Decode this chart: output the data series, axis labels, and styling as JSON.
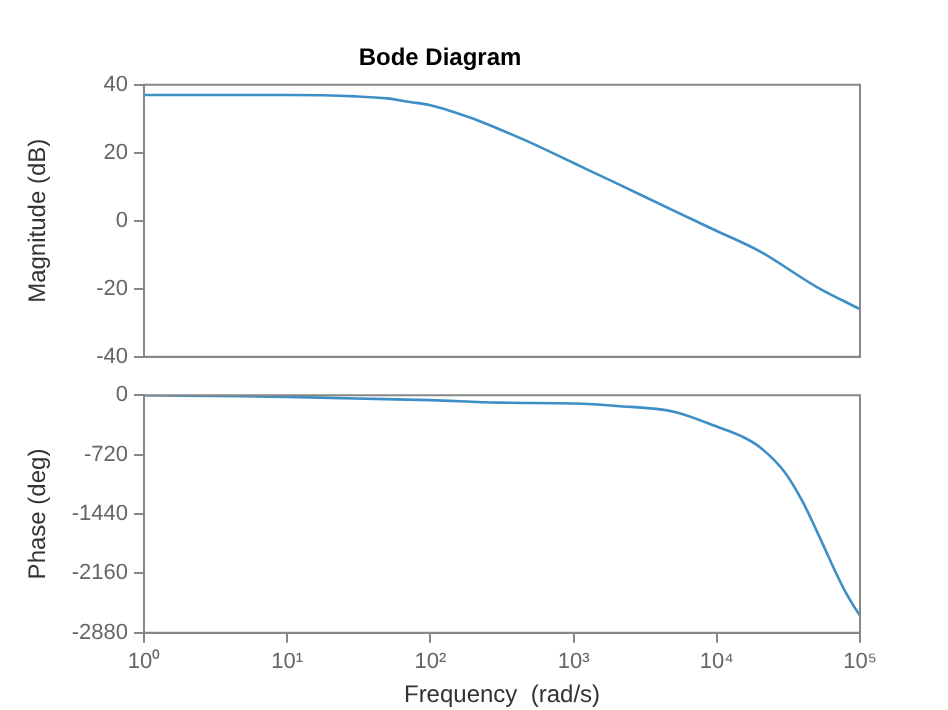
{
  "chart_data": [
    {
      "type": "line",
      "title": "Bode Diagram",
      "ylabel": "Magnitude (dB)",
      "log": "x",
      "grid": false,
      "marker": "none",
      "line_style": "solid",
      "legend": false,
      "tick_labels": "y",
      "x": [
        1,
        3,
        10,
        30,
        50,
        70,
        100,
        200,
        300,
        500,
        1000,
        2000,
        5000,
        10000,
        20000,
        50000,
        100000
      ],
      "series": [
        {
          "color": "#3d8fc6",
          "values": [
            37,
            37,
            37,
            36.6,
            36,
            35,
            34,
            30,
            27,
            23,
            17,
            11,
            3,
            -3,
            -9,
            -19.5,
            -26
          ]
        }
      ],
      "xlim": [
        1,
        100000
      ],
      "xticks": [
        {
          "value": 1,
          "label": null
        },
        {
          "value": 10,
          "label": null
        },
        {
          "value": 100,
          "label": null
        },
        {
          "value": 1000,
          "label": null
        },
        {
          "value": 10000,
          "label": null
        },
        {
          "value": 100000,
          "label": null
        }
      ],
      "ylim": [
        -40,
        40
      ],
      "yticks": [
        -40,
        -20,
        0,
        20,
        40
      ]
    },
    {
      "type": "line",
      "xlabel": "Frequency  (rad/s)",
      "ylabel": "Phase (deg)",
      "log": "x",
      "grid": false,
      "marker": "none",
      "line_style": "solid",
      "legend": false,
      "x": [
        1,
        3,
        10,
        30,
        100,
        300,
        1000,
        2000,
        5000,
        10000,
        15000,
        20000,
        30000,
        40000,
        50000,
        60000,
        70000,
        80000,
        90000,
        100000
      ],
      "series": [
        {
          "color": "#3d8fc6",
          "values": [
            0,
            -10,
            -20,
            -40,
            -60,
            -90,
            -100,
            -130,
            -200,
            -380,
            -500,
            -630,
            -940,
            -1300,
            -1650,
            -1950,
            -2200,
            -2400,
            -2550,
            -2670
          ]
        }
      ],
      "xlim": [
        1,
        100000
      ],
      "xticks": [
        {
          "value": 1,
          "label": "10⁰"
        },
        {
          "value": 10,
          "label": "10¹"
        },
        {
          "value": 100,
          "label": "10²"
        },
        {
          "value": 1000,
          "label": "10³"
        },
        {
          "value": 10000,
          "label": "10⁴"
        },
        {
          "value": 100000,
          "label": "10⁵"
        }
      ],
      "ylim": [
        -2880,
        0
      ],
      "yticks": [
        -2880,
        -2160,
        -1440,
        -720,
        0
      ]
    }
  ]
}
